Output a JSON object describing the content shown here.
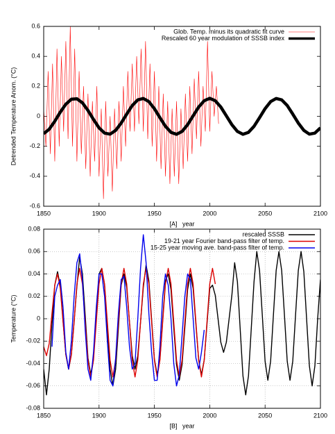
{
  "chart_data": [
    {
      "type": "line",
      "xlabel": "[A]   year",
      "ylabel": "Detrended Temperature Anom. (°C)",
      "xlim": [
        1850,
        2100
      ],
      "xticks": [
        1850,
        1900,
        1950,
        2000,
        2050,
        2100
      ],
      "ylim": [
        -0.6,
        0.6
      ],
      "yticks": [
        -0.6,
        -0.4,
        -0.2,
        0,
        0.2,
        0.4,
        0.6
      ],
      "grid": false,
      "legend": "upper right",
      "series": [
        {
          "name": "Glob. Temp. minus its quadratic fit curve",
          "color": "#ff0000",
          "x": [
            1850,
            1852,
            1854,
            1856,
            1858,
            1860,
            1862,
            1864,
            1866,
            1868,
            1870,
            1872,
            1874,
            1876,
            1878,
            1880,
            1882,
            1884,
            1886,
            1888,
            1890,
            1892,
            1894,
            1896,
            1898,
            1900,
            1902,
            1904,
            1906,
            1908,
            1910,
            1912,
            1914,
            1916,
            1918,
            1920,
            1922,
            1924,
            1926,
            1928,
            1930,
            1932,
            1934,
            1936,
            1938,
            1940,
            1942,
            1944,
            1946,
            1948,
            1950,
            1952,
            1954,
            1956,
            1958,
            1960,
            1962,
            1964,
            1966,
            1968,
            1970,
            1972,
            1974,
            1976,
            1978,
            1980,
            1982,
            1984,
            1986,
            1988,
            1990,
            1992,
            1994,
            1996,
            1998,
            2000,
            2002,
            2004,
            2006,
            2008
          ],
          "values": [
            0.05,
            -0.2,
            0.3,
            -0.25,
            0.35,
            -0.3,
            0.45,
            -0.2,
            0.4,
            -0.1,
            0.5,
            -0.15,
            0.6,
            -0.2,
            0.45,
            -0.3,
            0.3,
            -0.25,
            0.2,
            -0.35,
            0.15,
            -0.4,
            0.1,
            -0.3,
            0.2,
            -0.4,
            0.05,
            -0.55,
            0.1,
            -0.4,
            0.0,
            -0.5,
            0.05,
            -0.35,
            0.1,
            -0.3,
            0.2,
            -0.2,
            0.3,
            -0.1,
            0.35,
            -0.1,
            0.4,
            -0.05,
            0.45,
            -0.1,
            0.5,
            -0.15,
            0.35,
            -0.2,
            0.3,
            -0.3,
            0.2,
            -0.35,
            0.15,
            -0.4,
            0.1,
            -0.45,
            0.05,
            -0.4,
            0.1,
            -0.45,
            0.05,
            -0.35,
            0.15,
            -0.3,
            0.2,
            -0.25,
            0.25,
            -0.15,
            0.3,
            -0.2,
            0.2,
            -0.1,
            0.5,
            -0.1,
            0.3,
            0.0,
            0.2,
            -0.05
          ]
        },
        {
          "name": "Rescaled 60 year modulation of SSSB index",
          "color": "#000000",
          "x": [
            1850,
            1855,
            1860,
            1865,
            1870,
            1875,
            1880,
            1885,
            1890,
            1895,
            1900,
            1905,
            1910,
            1915,
            1920,
            1925,
            1930,
            1935,
            1940,
            1945,
            1950,
            1955,
            1960,
            1965,
            1970,
            1975,
            1980,
            1985,
            1990,
            1995,
            2000,
            2005,
            2010,
            2015,
            2020,
            2025,
            2030,
            2035,
            2040,
            2045,
            2050,
            2055,
            2060,
            2065,
            2070,
            2075,
            2080,
            2085,
            2090,
            2095,
            2100
          ],
          "values": [
            -0.116,
            -0.086,
            -0.033,
            0.028,
            0.081,
            0.114,
            0.117,
            0.09,
            0.039,
            -0.021,
            -0.077,
            -0.112,
            -0.119,
            -0.094,
            -0.045,
            0.015,
            0.072,
            0.11,
            0.119,
            0.098,
            0.051,
            -0.009,
            -0.067,
            -0.107,
            -0.12,
            -0.101,
            -0.056,
            0.003,
            0.062,
            0.104,
            0.12,
            0.104,
            0.062,
            0.003,
            -0.056,
            -0.101,
            -0.12,
            -0.107,
            -0.067,
            -0.009,
            0.051,
            0.098,
            0.119,
            0.11,
            0.072,
            0.015,
            -0.045,
            -0.094,
            -0.119,
            -0.112,
            -0.077
          ]
        }
      ]
    },
    {
      "type": "line",
      "xlabel": "[B]   year",
      "ylabel": "Temperature (°C)",
      "xlim": [
        1850,
        2100
      ],
      "xticks": [
        1850,
        1900,
        1950,
        2000,
        2050,
        2100
      ],
      "ylim": [
        -0.08,
        0.08
      ],
      "yticks": [
        -0.08,
        -0.06,
        -0.04,
        -0.02,
        0,
        0.02,
        0.04,
        0.06,
        0.08
      ],
      "grid": true,
      "legend": "upper right",
      "x": [
        1850,
        1852.5,
        1855,
        1857.5,
        1860,
        1862.5,
        1865,
        1867.5,
        1870,
        1872.5,
        1875,
        1877.5,
        1880,
        1882.5,
        1885,
        1887.5,
        1890,
        1892.5,
        1895,
        1897.5,
        1900,
        1902.5,
        1905,
        1907.5,
        1910,
        1912.5,
        1915,
        1917.5,
        1920,
        1922.5,
        1925,
        1927.5,
        1930,
        1932.5,
        1935,
        1937.5,
        1940,
        1942.5,
        1945,
        1947.5,
        1950,
        1952.5,
        1955,
        1957.5,
        1960,
        1962.5,
        1965,
        1967.5,
        1970,
        1972.5,
        1975,
        1977.5,
        1980,
        1982.5,
        1985,
        1987.5,
        1990,
        1992.5,
        1995,
        1997.5,
        2000,
        2002.5,
        2005,
        2007.5,
        2010,
        2012.5,
        2015,
        2017.5,
        2020,
        2022.5,
        2025,
        2027.5,
        2030,
        2032.5,
        2035,
        2037.5,
        2040,
        2042.5,
        2045,
        2047.5,
        2050,
        2052.5,
        2055,
        2057.5,
        2060,
        2062.5,
        2065,
        2067.5,
        2070,
        2072.5,
        2075,
        2077.5,
        2080,
        2082.5,
        2085,
        2087.5,
        2090,
        2092.5,
        2095,
        2097.5,
        2100
      ],
      "series": [
        {
          "name": "rescaled SSSB",
          "color": "#000000",
          "values": [
            -0.045,
            -0.068,
            -0.045,
            -0.005,
            0.03,
            0.042,
            0.029,
            -0.002,
            -0.032,
            -0.045,
            -0.032,
            -0.002,
            0.029,
            0.055,
            0.04,
            0.003,
            -0.035,
            -0.05,
            -0.035,
            0.003,
            0.04,
            0.045,
            0.03,
            -0.008,
            -0.045,
            -0.06,
            -0.045,
            -0.008,
            0.03,
            0.04,
            0.028,
            -0.003,
            -0.033,
            -0.045,
            -0.033,
            -0.003,
            0.028,
            0.048,
            0.034,
            -0.001,
            -0.036,
            -0.05,
            -0.036,
            -0.001,
            0.034,
            0.04,
            0.026,
            -0.008,
            -0.041,
            -0.055,
            -0.041,
            -0.008,
            0.026,
            0.04,
            0.027,
            -0.005,
            -0.037,
            -0.05,
            -0.037,
            -0.005,
            0.027,
            0.03,
            0.021,
            0,
            -0.021,
            -0.03,
            -0.021,
            0,
            0.021,
            0.05,
            0.033,
            -0.009,
            -0.051,
            -0.068,
            -0.051,
            -0.009,
            0.033,
            0.06,
            0.043,
            0.003,
            -0.038,
            -0.055,
            -0.038,
            0.003,
            0.043,
            0.06,
            0.043,
            0.003,
            -0.038,
            -0.055,
            -0.038,
            0.003,
            0.043,
            0.06,
            0.042,
            0,
            -0.042,
            -0.06,
            -0.042,
            0,
            0.035
          ]
        },
        {
          "name": "19-21 year Fourier band-pass filter of temp.",
          "color": "#dd0000",
          "values": [
            -0.025,
            -0.033,
            -0.022,
            0.005,
            0.03,
            0.04,
            0.027,
            -0.003,
            -0.032,
            -0.045,
            -0.032,
            -0.003,
            0.031,
            0.045,
            0.031,
            -0.003,
            -0.037,
            -0.052,
            -0.037,
            -0.003,
            0.031,
            0.045,
            0.031,
            -0.003,
            -0.037,
            -0.052,
            -0.037,
            -0.003,
            0.031,
            0.045,
            0.031,
            -0.003,
            -0.037,
            -0.052,
            -0.037,
            -0.003,
            0.031,
            0.045,
            0.031,
            -0.003,
            -0.037,
            -0.052,
            -0.037,
            -0.003,
            0.031,
            0.045,
            0.031,
            -0.003,
            -0.037,
            -0.052,
            -0.037,
            -0.003,
            0.031,
            0.045,
            0.031,
            -0.003,
            -0.037,
            -0.052,
            -0.037,
            -0.003,
            0.031,
            0.045,
            0.031,
            null,
            null,
            null,
            null,
            null,
            null,
            null,
            null,
            null,
            null,
            null,
            null,
            null,
            null,
            null,
            null,
            null,
            null,
            null,
            null,
            null,
            null,
            null,
            null,
            null,
            null,
            null,
            null,
            null,
            null,
            null,
            null,
            null,
            null,
            null,
            null,
            null,
            null
          ]
        },
        {
          "name": "15-25 year moving ave. band-pass filter of temp.",
          "color": "#0000ee",
          "values": [
            null,
            null,
            null,
            -0.025,
            0.02,
            0.03,
            0.035,
            0.01,
            -0.03,
            -0.045,
            -0.02,
            0.02,
            0.05,
            0.058,
            0.035,
            -0.01,
            -0.045,
            -0.055,
            -0.03,
            0.01,
            0.04,
            0.04,
            0.02,
            -0.02,
            -0.055,
            -0.06,
            -0.035,
            0.005,
            0.035,
            0.038,
            0.01,
            -0.025,
            -0.045,
            -0.04,
            0,
            0.045,
            0.075,
            0.05,
            0.005,
            -0.03,
            -0.055,
            -0.055,
            -0.025,
            0.02,
            0.04,
            0.03,
            0,
            -0.04,
            -0.06,
            -0.05,
            -0.015,
            0.02,
            0.04,
            0.035,
            0,
            -0.035,
            -0.045,
            -0.03,
            -0.01,
            null,
            null,
            null,
            null,
            null,
            null,
            null,
            null,
            null,
            null,
            null,
            null,
            null,
            null,
            null,
            null,
            null,
            null,
            null,
            null,
            null,
            null,
            null,
            null,
            null,
            null,
            null,
            null,
            null,
            null,
            null,
            null,
            null,
            null,
            null,
            null,
            null,
            null,
            null,
            null,
            null,
            null
          ]
        }
      ]
    }
  ]
}
